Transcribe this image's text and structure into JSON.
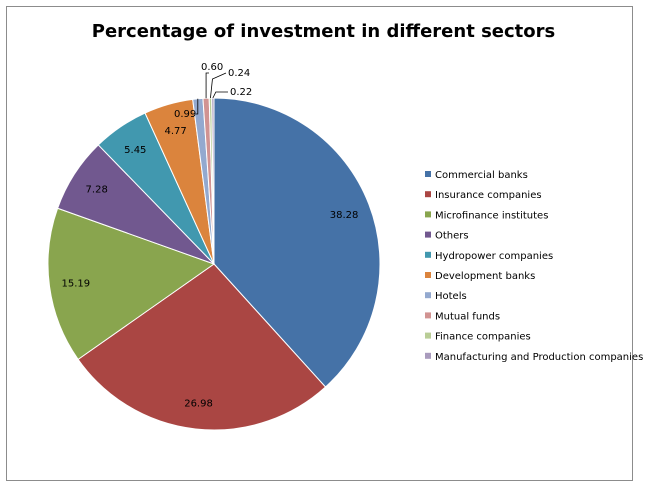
{
  "chart_data": {
    "type": "pie",
    "title": "Percentage of investment in different sectors",
    "legend_position": "right",
    "slices": [
      {
        "name": "Commercial banks",
        "value": 38.28,
        "label": "38.28",
        "color": "#4572A7"
      },
      {
        "name": "Insurance companies",
        "value": 26.98,
        "label": "26.98",
        "color": "#AA4643"
      },
      {
        "name": "Microfinance institutes",
        "value": 15.19,
        "label": "15.19",
        "color": "#89A54E"
      },
      {
        "name": "Others",
        "value": 7.28,
        "label": "7.28",
        "color": "#71588F"
      },
      {
        "name": "Hydropower companies",
        "value": 5.45,
        "label": "5.45",
        "color": "#4198AF"
      },
      {
        "name": "Development banks",
        "value": 4.77,
        "label": "4.77",
        "color": "#DB843D"
      },
      {
        "name": "Hotels",
        "value": 0.99,
        "label": "0.99",
        "color": "#93A9CF"
      },
      {
        "name": "Mutual funds",
        "value": 0.6,
        "label": "0.60",
        "color": "#D19392"
      },
      {
        "name": "Finance companies",
        "value": 0.24,
        "label": "0.24",
        "color": "#B9CD96"
      },
      {
        "name": "Manufacturing and Production companies",
        "value": 0.22,
        "label": "0.22",
        "color": "#A99BBD"
      }
    ]
  }
}
